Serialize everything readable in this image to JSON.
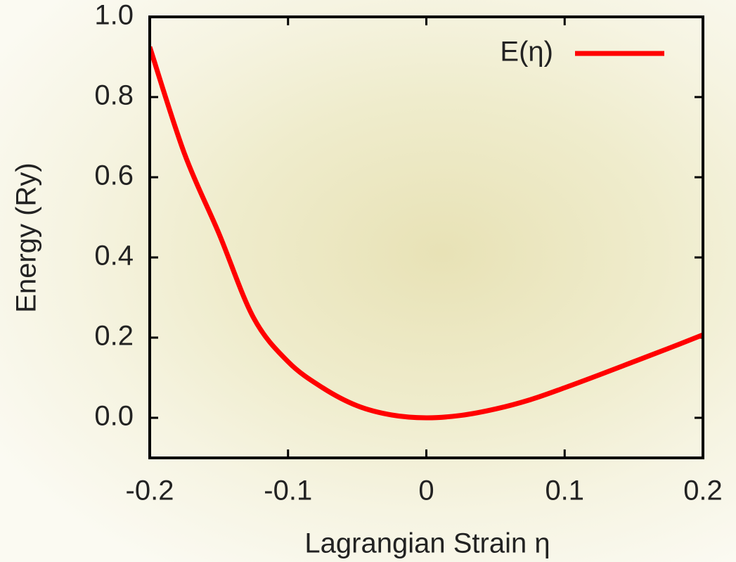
{
  "chart_data": {
    "type": "line",
    "xlabel": "Lagrangian Strain η",
    "ylabel": "Energy (Ry)",
    "x": [
      -0.2,
      -0.175,
      -0.15,
      -0.125,
      -0.1,
      -0.075,
      -0.05,
      -0.025,
      0,
      0.025,
      0.05,
      0.075,
      0.1,
      0.125,
      0.15,
      0.175,
      0.2
    ],
    "series": [
      {
        "name": "E(η)",
        "color": "#ff0000",
        "values": [
          0.925,
          0.66,
          0.46,
          0.25,
          0.14,
          0.075,
          0.03,
          0.007,
          0,
          0.006,
          0.022,
          0.045,
          0.075,
          0.107,
          0.14,
          0.173,
          0.207
        ]
      }
    ],
    "xlim": [
      -0.2,
      0.2
    ],
    "xticks": [
      -0.2,
      -0.1,
      0,
      0.1,
      0.2
    ],
    "ylim": [
      -0.1,
      1.0
    ],
    "yticks": [
      {
        "value": 0,
        "label": "0.0"
      },
      0.2,
      0.4,
      0.6,
      0.8,
      {
        "value": 1,
        "label": "1.0"
      }
    ],
    "legend": "top-right"
  }
}
